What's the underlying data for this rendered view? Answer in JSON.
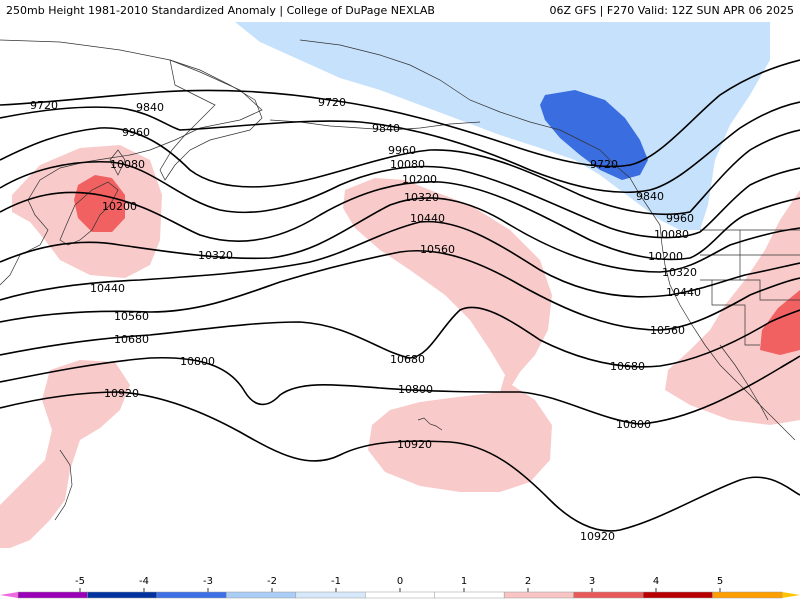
{
  "header": {
    "title_left": "250mb Height 1981-2010 Standardized Anomaly | College of DuPage NEXLAB",
    "title_right": "06Z GFS | F270 Valid: 12Z SUN APR 06 2025"
  },
  "contour_labels": {
    "c9720a": "9720",
    "c9720b": "9720",
    "c9720c": "9720",
    "c9840a": "9840",
    "c9840b": "9840",
    "c9840c": "9840",
    "c9960a": "9960",
    "c9960b": "9960",
    "c9960c": "9960",
    "c10080a": "10080",
    "c10080b": "10080",
    "c10080c": "10080",
    "c10200a": "10200",
    "c10200b": "10200",
    "c10200c": "10200",
    "c10320a": "10320",
    "c10320b": "10320",
    "c10320c": "10320",
    "c10440a": "10440",
    "c10440b": "10440",
    "c10440c": "10440",
    "c10560a": "10560",
    "c10560b": "10560",
    "c10560c": "10560",
    "c10680a": "10680",
    "c10680b": "10680",
    "c10680c": "10680",
    "c10800a": "10800",
    "c10800b": "10800",
    "c10800c": "10800",
    "c10920a": "10920",
    "c10920b": "10920",
    "c10920c": "10920"
  },
  "colorbar": {
    "ticks": [
      "-5",
      "-4",
      "-3",
      "-2",
      "-1",
      "0",
      "1",
      "2",
      "3",
      "4",
      "5"
    ],
    "colors": [
      "#9a00b8",
      "#0033a0",
      "#3d6fe6",
      "#a9cdf5",
      "#d6e8fa",
      "#ffffff",
      "#ffffff",
      "#f8c4c4",
      "#e85a5a",
      "#b80000",
      "#ff9e00"
    ],
    "min_color": "#f06ae0",
    "max_color": "#ffc400"
  },
  "anomaly_colors": {
    "light_blue": "#c6e1fb",
    "blue": "#3a6de0",
    "light_red": "#f9caca",
    "red": "#f16161"
  }
}
